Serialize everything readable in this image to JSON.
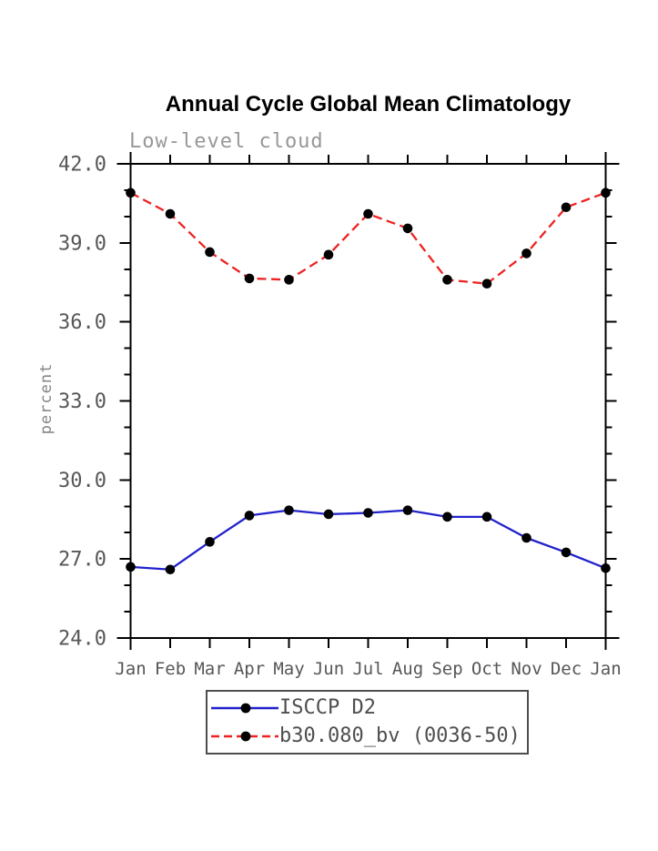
{
  "chart": {
    "title": "Annual Cycle Global Mean Climatology",
    "subtitle": "Low-level cloud",
    "ylabel": "percent"
  },
  "chart_data": {
    "type": "line",
    "title": "Annual Cycle Global Mean Climatology",
    "subtitle": "Low-level cloud",
    "xlabel": "",
    "ylabel": "percent",
    "categories": [
      "Jan",
      "Feb",
      "Mar",
      "Apr",
      "May",
      "Jun",
      "Jul",
      "Aug",
      "Sep",
      "Oct",
      "Nov",
      "Dec",
      "Jan"
    ],
    "series": [
      {
        "name": "ISCCP D2",
        "line_style": "solid",
        "line_color": "#2222cc",
        "marker": "circle",
        "marker_color": "#000000",
        "values": [
          26.7,
          26.6,
          27.65,
          28.65,
          28.85,
          28.7,
          28.75,
          28.85,
          28.6,
          28.6,
          27.8,
          27.25,
          26.65
        ]
      },
      {
        "name": "b30.080_bv (0036-50)",
        "line_style": "dashed",
        "line_color": "#ee2222",
        "marker": "circle",
        "marker_color": "#000000",
        "values": [
          40.9,
          40.1,
          38.65,
          37.65,
          37.6,
          38.55,
          40.1,
          39.55,
          37.6,
          37.45,
          38.6,
          40.35,
          40.9
        ]
      }
    ],
    "ylim": [
      24.0,
      42.0
    ],
    "ytick_step": 3.0,
    "yminor_step": 1.0,
    "ytick_labels": [
      "24.0",
      "27.0",
      "30.0",
      "33.0",
      "36.0",
      "39.0",
      "42.0"
    ],
    "grid": false,
    "legend_position": "bottom-center",
    "axis_color": "#000000",
    "tick_label_color": "#575757"
  },
  "legend": {
    "items": [
      {
        "label": "ISCCP D2"
      },
      {
        "label": "b30.080_bv (0036-50)"
      }
    ]
  }
}
